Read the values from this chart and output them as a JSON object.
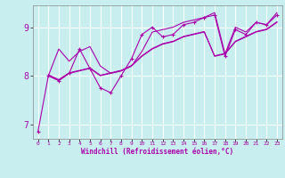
{
  "xlabel": "Windchill (Refroidissement éolien,°C)",
  "bg_color": "#c8eef0",
  "grid_color": "#ffffff",
  "line_color": "#aa00aa",
  "xlim": [
    -0.5,
    23.5
  ],
  "ylim": [
    6.7,
    9.45
  ],
  "yticks": [
    7,
    8,
    9
  ],
  "xticks": [
    0,
    1,
    2,
    3,
    4,
    5,
    6,
    7,
    8,
    9,
    10,
    11,
    12,
    13,
    14,
    15,
    16,
    17,
    18,
    19,
    20,
    21,
    22,
    23
  ],
  "lines": [
    {
      "x": [
        0,
        1,
        2,
        3,
        4,
        5,
        6,
        7,
        8,
        9,
        10,
        11,
        12,
        13,
        14,
        15,
        16,
        17,
        18,
        19,
        20,
        21,
        22,
        23
      ],
      "y": [
        6.85,
        8.0,
        7.9,
        8.05,
        8.55,
        8.15,
        7.75,
        7.65,
        8.0,
        8.35,
        8.85,
        9.0,
        8.8,
        8.85,
        9.05,
        9.1,
        9.2,
        9.25,
        8.4,
        8.95,
        8.85,
        9.1,
        9.05,
        9.25
      ],
      "marker": "+"
    },
    {
      "x": [
        1,
        2,
        3,
        4,
        5,
        6,
        7,
        8,
        9,
        10,
        11,
        12,
        13,
        14,
        15,
        16,
        17,
        18,
        19,
        20,
        21,
        22,
        23
      ],
      "y": [
        8.0,
        8.55,
        8.3,
        8.5,
        8.6,
        8.2,
        8.05,
        8.1,
        8.2,
        8.5,
        8.9,
        8.95,
        9.0,
        9.1,
        9.15,
        9.2,
        9.3,
        8.45,
        9.0,
        8.9,
        9.1,
        9.05,
        9.3
      ],
      "marker": null
    },
    {
      "x": [
        1,
        2,
        3,
        4,
        5,
        6,
        7,
        8,
        9,
        10,
        11,
        12,
        13,
        14,
        15,
        16,
        17,
        18,
        19,
        20,
        21,
        22,
        23
      ],
      "y": [
        8.0,
        7.9,
        8.05,
        8.1,
        8.15,
        8.0,
        8.05,
        8.1,
        8.2,
        8.4,
        8.55,
        8.65,
        8.7,
        8.8,
        8.85,
        8.9,
        8.4,
        8.45,
        8.7,
        8.8,
        8.9,
        8.95,
        9.1
      ],
      "marker": null
    },
    {
      "x": [
        1,
        2,
        3,
        4,
        5,
        6,
        7,
        8,
        9,
        10,
        11,
        12,
        13,
        14,
        15,
        16,
        17,
        18,
        19,
        20,
        21,
        22,
        23
      ],
      "y": [
        8.02,
        7.92,
        8.06,
        8.11,
        8.16,
        8.01,
        8.06,
        8.11,
        8.21,
        8.41,
        8.56,
        8.66,
        8.71,
        8.81,
        8.86,
        8.91,
        8.41,
        8.46,
        8.71,
        8.81,
        8.91,
        8.96,
        9.11
      ],
      "marker": null
    }
  ]
}
